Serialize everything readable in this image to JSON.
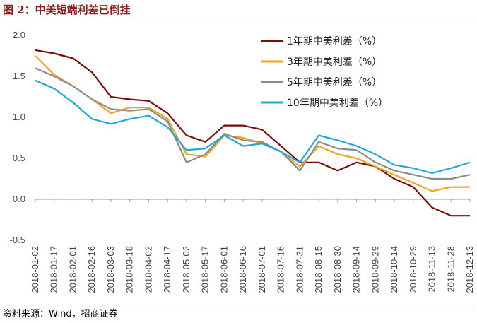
{
  "figure_title": "图 2：中美短端利差已倒挂",
  "source": "资料来源：Wind，招商证券",
  "colors": {
    "title": "#8b1a1a",
    "rule": "#8b1a1a"
  },
  "chart_data": {
    "type": "line",
    "title": "",
    "xlabel": "",
    "ylabel": "",
    "ylim": [
      -0.5,
      2.0
    ],
    "yticks": [
      "2.0",
      "1.5",
      "1.0",
      "0.5",
      "0.0",
      "-0.5"
    ],
    "grid": false,
    "legend_position": "top-right",
    "x": [
      "2018-01-02",
      "2018-01-17",
      "2018-02-01",
      "2018-02-16",
      "2018-03-03",
      "2018-03-18",
      "2018-04-02",
      "2018-04-17",
      "2018-05-02",
      "2018-05-17",
      "2018-06-01",
      "2018-06-16",
      "2018-07-01",
      "2018-07-16",
      "2018-07-31",
      "2018-08-15",
      "2018-08-30",
      "2018-09-14",
      "2018-09-29",
      "2018-10-14",
      "2018-10-29",
      "2018-11-13",
      "2018-11-28",
      "2018-12-13"
    ],
    "series": [
      {
        "name": "1年期中美利差（%）",
        "color": "#7b0c0c",
        "values": [
          1.82,
          1.78,
          1.72,
          1.55,
          1.25,
          1.22,
          1.2,
          1.05,
          0.78,
          0.7,
          0.9,
          0.9,
          0.85,
          0.65,
          0.45,
          0.45,
          0.35,
          0.45,
          0.4,
          0.25,
          0.15,
          -0.1,
          -0.2,
          -0.2
        ]
      },
      {
        "name": "3年期中美利差（%）",
        "color": "#f5a31a",
        "values": [
          1.75,
          1.52,
          1.38,
          1.22,
          1.05,
          1.12,
          1.12,
          0.98,
          0.55,
          0.52,
          0.78,
          0.75,
          0.68,
          0.58,
          0.4,
          0.65,
          0.55,
          0.5,
          0.4,
          0.3,
          0.2,
          0.1,
          0.15,
          0.15
        ]
      },
      {
        "name": "5年期中美利差（%）",
        "color": "#8c8c8c",
        "values": [
          1.6,
          1.5,
          1.38,
          1.22,
          1.1,
          1.08,
          1.1,
          0.95,
          0.45,
          0.55,
          0.8,
          0.72,
          0.7,
          0.58,
          0.35,
          0.7,
          0.62,
          0.6,
          0.45,
          0.35,
          0.3,
          0.25,
          0.25,
          0.3
        ]
      },
      {
        "name": "10年期中美利差（%）",
        "color": "#1ca8e0",
        "values": [
          1.45,
          1.35,
          1.18,
          0.98,
          0.92,
          0.98,
          1.02,
          0.88,
          0.6,
          0.62,
          0.78,
          0.65,
          0.68,
          0.58,
          0.45,
          0.78,
          0.72,
          0.65,
          0.55,
          0.42,
          0.38,
          0.32,
          0.38,
          0.45
        ]
      }
    ]
  }
}
